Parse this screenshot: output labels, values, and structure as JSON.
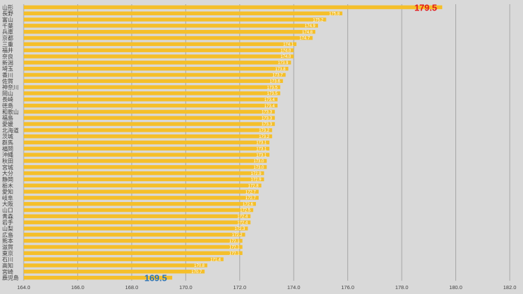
{
  "chart_data": {
    "type": "bar",
    "orientation": "horizontal",
    "categories": [
      "山形",
      "長野",
      "富山",
      "千葉",
      "兵庫",
      "京都",
      "三重",
      "福井",
      "奈良",
      "新潟",
      "埼玉",
      "香川",
      "佐賀",
      "神奈川",
      "岡山",
      "長崎",
      "徳島",
      "和歌山",
      "福島",
      "愛媛",
      "北海道",
      "茨城",
      "群馬",
      "福岡",
      "沖縄",
      "秋田",
      "宮城",
      "大分",
      "静岡",
      "栃木",
      "愛知",
      "岐阜",
      "大阪",
      "山口",
      "青森",
      "岩手",
      "山梨",
      "広島",
      "熊本",
      "滋賀",
      "東京",
      "石川",
      "高知",
      "宮崎",
      "鹿児島"
    ],
    "values": [
      179.5,
      175.8,
      175.2,
      174.9,
      174.8,
      174.7,
      174.1,
      174.0,
      174.0,
      173.9,
      173.8,
      173.7,
      173.6,
      173.5,
      173.5,
      173.4,
      173.4,
      173.3,
      173.3,
      173.3,
      173.2,
      173.2,
      173.1,
      173.1,
      173.1,
      173.0,
      173.0,
      172.9,
      172.9,
      172.8,
      172.7,
      172.7,
      172.6,
      172.5,
      172.4,
      172.4,
      172.3,
      172.2,
      172.1,
      172.1,
      172.1,
      171.4,
      170.8,
      170.7,
      169.5
    ],
    "value_labels": [
      "179.5",
      "175.8",
      "175.2",
      "174.9",
      "174.8",
      "174.7",
      "174.1",
      "174.0",
      "174.0",
      "173.9",
      "173.8",
      "173.7",
      "173.6",
      "173.5",
      "173.5",
      "173.4",
      "173.4",
      "173.3",
      "173.3",
      "173.3",
      "173.2",
      "173.2",
      "173.1",
      "173.1",
      "173.1",
      "173.0",
      "173.0",
      "172.9",
      "172.9",
      "172.8",
      "172.7",
      "172.7",
      "172.6",
      "172.5",
      "172.4",
      "172.4",
      "172.3",
      "172.2",
      "172.1",
      "172.1",
      "172.1",
      "171.4",
      "170.8",
      "170.7",
      "169.5"
    ],
    "xlim": [
      164,
      182
    ],
    "x_ticks": [
      "164.0",
      "166.0",
      "168.0",
      "170.0",
      "172.0",
      "174.0",
      "176.0",
      "178.0",
      "180.0",
      "182.0"
    ],
    "highlight_max": "179.5",
    "highlight_min": "169.5",
    "grid": true,
    "colors": {
      "bar": "#f5bf2a",
      "max_label": "#e31a1c",
      "min_label": "#2e75b6",
      "background": "#d9d9d9"
    }
  }
}
